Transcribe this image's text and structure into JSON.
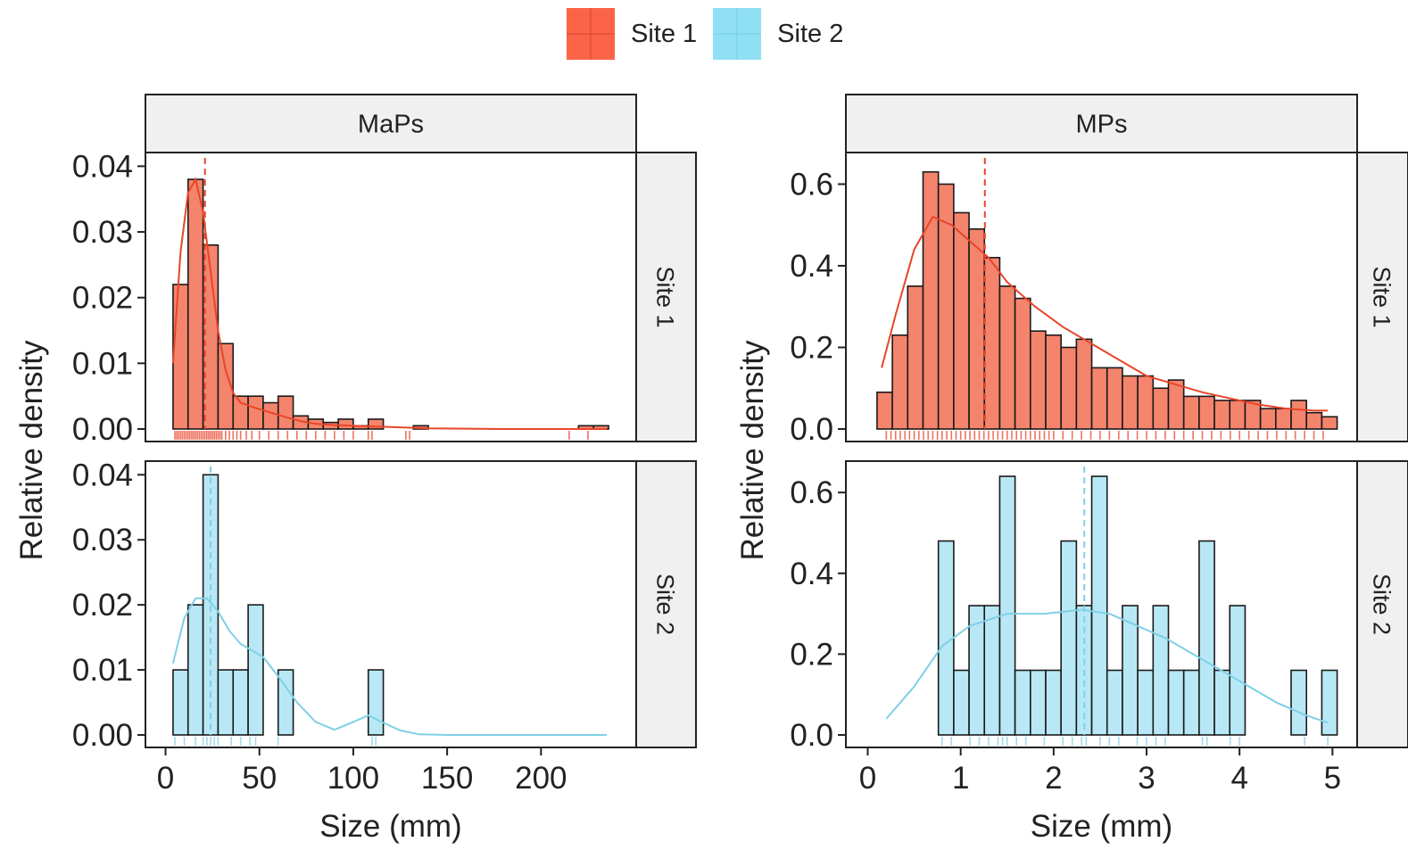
{
  "colors": {
    "site1_fill": "#f4846c",
    "site1_line": "#e8452a",
    "site1_legend": "#fc6448",
    "site2_fill": "#b8e8f6",
    "site2_line": "#7fd0e6",
    "site2_legend": "#8fe0f5",
    "strip_bg": "#f0f0f0"
  },
  "legend": {
    "items": [
      {
        "label": "Site 1",
        "color_key": "site1_legend"
      },
      {
        "label": "Site 2",
        "color_key": "site2_legend"
      }
    ]
  },
  "chart_data": [
    {
      "type": "bar",
      "panel": "MaPs",
      "facet_col": "MaPs",
      "row_strips": [
        "Site 1",
        "Site 2"
      ],
      "xlabel": "Size (mm)",
      "ylabel": "Relative density",
      "xlim": [
        -5,
        245
      ],
      "x_ticks": [
        0,
        50,
        100,
        150,
        200
      ],
      "x_tick_labels": [
        "0",
        "50",
        "100",
        "150",
        "200"
      ],
      "series": [
        {
          "name": "Site 1",
          "ylim": [
            0,
            0.041
          ],
          "y_ticks": [
            0,
            0.01,
            0.02,
            0.03,
            0.04
          ],
          "y_tick_labels": [
            "0.00",
            "0.01",
            "0.02",
            "0.03",
            "0.04"
          ],
          "bin_width": 8,
          "bins_start": [
            4,
            12,
            20,
            28,
            36,
            44,
            52,
            60,
            68,
            76,
            84,
            92,
            100,
            108,
            116,
            124,
            132,
            140,
            148,
            156,
            164,
            172,
            180,
            188,
            196,
            204,
            212,
            220,
            228
          ],
          "values": [
            0.022,
            0.038,
            0.028,
            0.013,
            0.005,
            0.005,
            0.004,
            0.005,
            0.002,
            0.0015,
            0.001,
            0.0015,
            0.0005,
            0.0015,
            0,
            0,
            0.0005,
            0,
            0,
            0,
            0,
            0,
            0,
            0,
            0,
            0,
            0,
            0.0005,
            0.0005
          ],
          "density_x": [
            4,
            8,
            12,
            16,
            20,
            24,
            28,
            32,
            36,
            40,
            48,
            56,
            64,
            72,
            80,
            90,
            100,
            110,
            120,
            140,
            180,
            235
          ],
          "density_y": [
            0.01,
            0.027,
            0.036,
            0.038,
            0.033,
            0.024,
            0.015,
            0.009,
            0.0055,
            0.004,
            0.0032,
            0.0025,
            0.0018,
            0.0012,
            0.0008,
            0.0006,
            0.0005,
            0.0004,
            0.0003,
            0.0001,
            0,
            0
          ],
          "mean": 21,
          "rug": [
            5,
            6,
            7,
            8,
            9,
            10,
            11,
            12,
            13,
            14,
            15,
            16,
            17,
            18,
            19,
            20,
            21,
            22,
            23,
            24,
            25,
            26,
            27,
            28,
            29,
            30,
            32,
            34,
            36,
            38,
            40,
            43,
            46,
            50,
            55,
            60,
            65,
            70,
            75,
            80,
            85,
            90,
            95,
            100,
            108,
            110,
            128,
            130,
            215,
            225
          ]
        },
        {
          "name": "Site 2",
          "ylim": [
            0,
            0.041
          ],
          "y_ticks": [
            0,
            0.01,
            0.02,
            0.03,
            0.04
          ],
          "y_tick_labels": [
            "0.00",
            "0.01",
            "0.02",
            "0.03",
            "0.04"
          ],
          "bin_width": 8,
          "bins_start": [
            4,
            12,
            20,
            28,
            36,
            44,
            52,
            60,
            68,
            76,
            84,
            92,
            100,
            108
          ],
          "values": [
            0.01,
            0.02,
            0.04,
            0.01,
            0.01,
            0.02,
            0,
            0.01,
            0,
            0,
            0,
            0,
            0,
            0.01
          ],
          "density_x": [
            4,
            10,
            16,
            22,
            28,
            34,
            40,
            46,
            52,
            60,
            70,
            80,
            90,
            100,
            108,
            115,
            125,
            135,
            150,
            235
          ],
          "density_y": [
            0.011,
            0.018,
            0.021,
            0.021,
            0.019,
            0.016,
            0.014,
            0.013,
            0.012,
            0.009,
            0.005,
            0.002,
            0.0008,
            0.002,
            0.003,
            0.002,
            0.0007,
            0.0001,
            0,
            0
          ],
          "mean": 24,
          "rug": [
            5,
            10,
            16,
            20,
            22,
            24,
            26,
            28,
            35,
            40,
            45,
            48,
            60,
            110,
            112
          ]
        }
      ]
    },
    {
      "type": "bar",
      "panel": "MPs",
      "facet_col": "MPs",
      "row_strips": [
        "Site 1",
        "Site 2"
      ],
      "xlabel": "Size (mm)",
      "ylabel": "Relative density",
      "xlim": [
        -0.12,
        5.15
      ],
      "x_ticks": [
        0,
        1,
        2,
        3,
        4,
        5
      ],
      "x_tick_labels": [
        "0",
        "1",
        "2",
        "3",
        "4",
        "5"
      ],
      "series": [
        {
          "name": "Site 1",
          "ylim": [
            0,
            0.66
          ],
          "y_ticks": [
            0,
            0.2,
            0.4,
            0.6
          ],
          "y_tick_labels": [
            "0.0",
            "0.2",
            "0.4",
            "0.6"
          ],
          "bin_width": 0.165,
          "bins_start": [
            0.1,
            0.265,
            0.43,
            0.595,
            0.76,
            0.925,
            1.09,
            1.255,
            1.42,
            1.585,
            1.75,
            1.915,
            2.08,
            2.245,
            2.41,
            2.575,
            2.74,
            2.905,
            3.07,
            3.235,
            3.4,
            3.565,
            3.73,
            3.895,
            4.06,
            4.225,
            4.39,
            4.555,
            4.72,
            4.885
          ],
          "values": [
            0.09,
            0.23,
            0.35,
            0.63,
            0.6,
            0.53,
            0.49,
            0.42,
            0.35,
            0.32,
            0.24,
            0.23,
            0.2,
            0.22,
            0.15,
            0.15,
            0.13,
            0.13,
            0.1,
            0.12,
            0.08,
            0.08,
            0.07,
            0.07,
            0.07,
            0.05,
            0.05,
            0.07,
            0.04,
            0.03
          ],
          "density_x": [
            0.15,
            0.3,
            0.5,
            0.7,
            0.9,
            1.1,
            1.3,
            1.5,
            1.8,
            2.1,
            2.4,
            2.7,
            3.0,
            3.3,
            3.6,
            3.9,
            4.2,
            4.5,
            4.8,
            4.95
          ],
          "density_y": [
            0.15,
            0.28,
            0.44,
            0.52,
            0.5,
            0.46,
            0.42,
            0.36,
            0.3,
            0.25,
            0.21,
            0.17,
            0.13,
            0.11,
            0.09,
            0.075,
            0.06,
            0.05,
            0.045,
            0.045
          ],
          "mean": 1.26,
          "rug": [
            0.2,
            0.25,
            0.3,
            0.35,
            0.4,
            0.45,
            0.5,
            0.55,
            0.6,
            0.65,
            0.7,
            0.75,
            0.8,
            0.85,
            0.9,
            0.95,
            1,
            1.05,
            1.1,
            1.15,
            1.2,
            1.25,
            1.3,
            1.35,
            1.4,
            1.45,
            1.5,
            1.55,
            1.6,
            1.65,
            1.7,
            1.75,
            1.8,
            1.85,
            1.9,
            1.95,
            2,
            2.1,
            2.2,
            2.3,
            2.4,
            2.5,
            2.6,
            2.7,
            2.8,
            2.9,
            3,
            3.1,
            3.2,
            3.3,
            3.4,
            3.5,
            3.6,
            3.7,
            3.8,
            3.9,
            4,
            4.1,
            4.2,
            4.3,
            4.4,
            4.5,
            4.6,
            4.7,
            4.8,
            4.9
          ]
        },
        {
          "name": "Site 2",
          "ylim": [
            0,
            0.66
          ],
          "y_ticks": [
            0,
            0.2,
            0.4,
            0.6
          ],
          "y_tick_labels": [
            "0.0",
            "0.2",
            "0.4",
            "0.6"
          ],
          "bin_width": 0.165,
          "bins_start": [
            0.76,
            0.925,
            1.09,
            1.255,
            1.42,
            1.585,
            1.75,
            1.915,
            2.08,
            2.245,
            2.41,
            2.575,
            2.74,
            2.905,
            3.07,
            3.235,
            3.4,
            3.565,
            3.73,
            3.895,
            4.06,
            4.225,
            4.39,
            4.555,
            4.72,
            4.885
          ],
          "values": [
            0.48,
            0.16,
            0.32,
            0.32,
            0.64,
            0.16,
            0.16,
            0.16,
            0.48,
            0.32,
            0.64,
            0.16,
            0.32,
            0.16,
            0.32,
            0.16,
            0.16,
            0.48,
            0.16,
            0.32,
            0,
            0,
            0,
            0.16,
            0,
            0.16
          ],
          "density_x": [
            0.2,
            0.5,
            0.8,
            1.1,
            1.5,
            1.9,
            2.3,
            2.6,
            2.9,
            3.2,
            3.5,
            3.8,
            4.1,
            4.4,
            4.7,
            4.95
          ],
          "density_y": [
            0.04,
            0.12,
            0.22,
            0.27,
            0.3,
            0.3,
            0.31,
            0.3,
            0.27,
            0.24,
            0.2,
            0.16,
            0.12,
            0.08,
            0.05,
            0.03
          ],
          "mean": 2.33,
          "rug": [
            0.8,
            0.9,
            1.1,
            1.2,
            1.3,
            1.4,
            1.45,
            1.5,
            1.6,
            1.7,
            1.9,
            2.1,
            2.2,
            2.3,
            2.35,
            2.5,
            2.6,
            2.7,
            2.9,
            3.0,
            3.1,
            3.2,
            3.6,
            3.65,
            3.9,
            4.0,
            4.7,
            4.95
          ]
        }
      ]
    }
  ]
}
